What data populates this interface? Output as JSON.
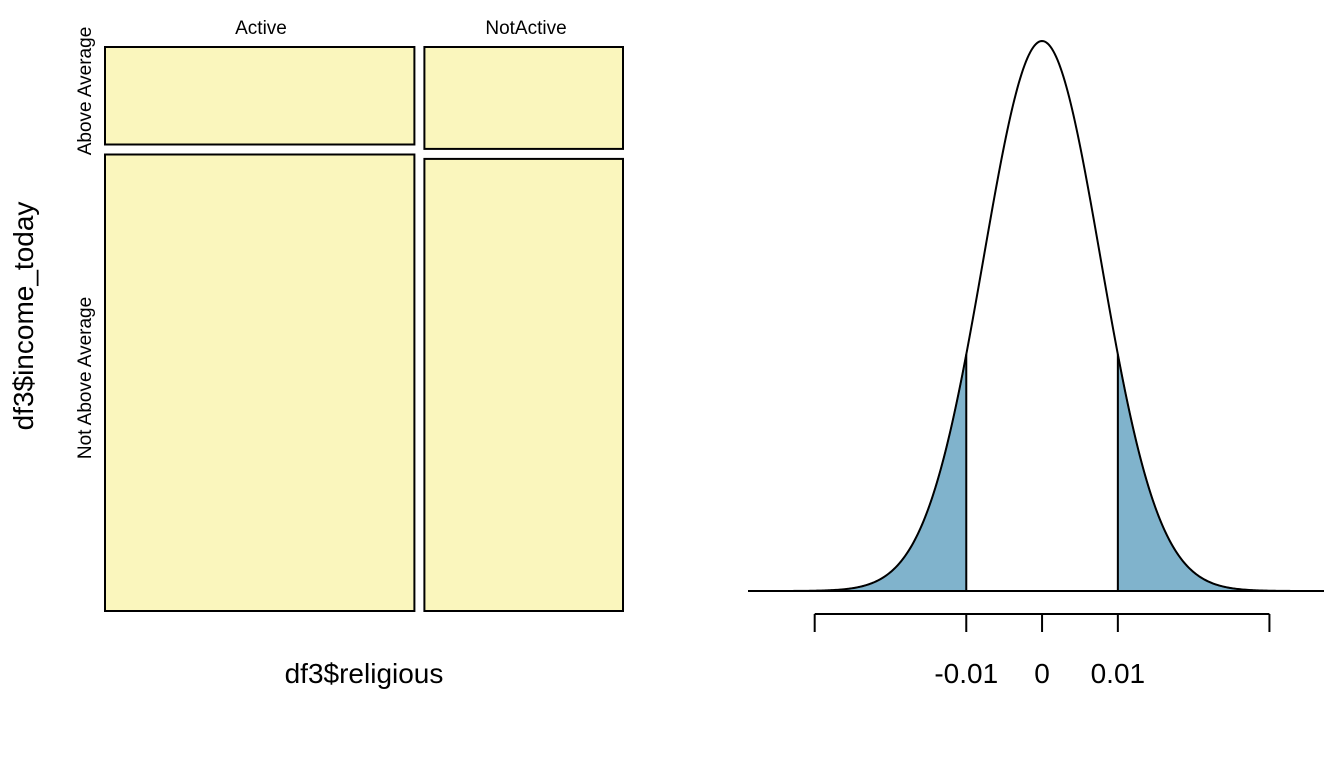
{
  "colors": {
    "mosaic_fill": "#FAF6BD",
    "tail_fill": "#80B3CC",
    "stroke": "#000000",
    "background": "#FFFFFF"
  },
  "chart_data": [
    {
      "type": "mosaic",
      "xlabel": "df3$religious",
      "ylabel": "df3$income_today",
      "x_categories": [
        "Active",
        "NotActive"
      ],
      "y_categories": [
        "Above Average",
        "Not Above Average"
      ],
      "column_proportions": [
        0.609,
        0.391
      ],
      "cells": [
        {
          "x": "Active",
          "y": "Above Average",
          "proportion_within_x": 0.176
        },
        {
          "x": "Active",
          "y": "Not Above Average",
          "proportion_within_x": 0.824
        },
        {
          "x": "NotActive",
          "y": "Above Average",
          "proportion_within_x": 0.184
        },
        {
          "x": "NotActive",
          "y": "Not Above Average",
          "proportion_within_x": 0.816
        }
      ]
    },
    {
      "type": "area",
      "distribution": "normal",
      "mean": 0,
      "sd": 0.0077,
      "xlim": [
        -0.0388,
        0.0372
      ],
      "shaded_regions": [
        {
          "from": -0.0388,
          "to": -0.01
        },
        {
          "from": 0.01,
          "to": 0.0372
        }
      ],
      "axis_ticks": [
        -0.03,
        -0.01,
        0,
        0.01,
        0.03
      ],
      "tick_labels": [
        "",
        "-0.01",
        "0",
        "0.01",
        ""
      ]
    }
  ]
}
